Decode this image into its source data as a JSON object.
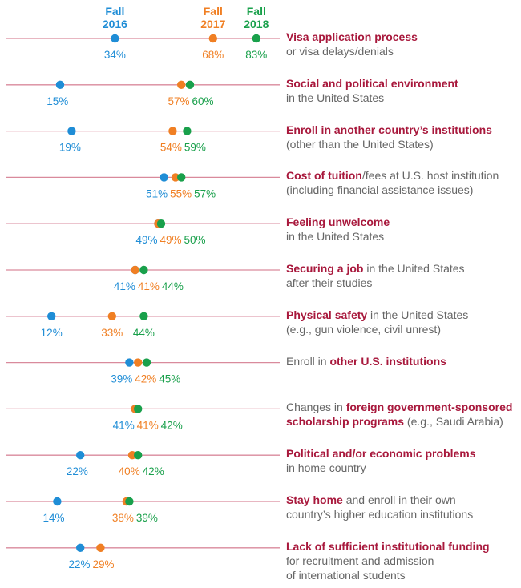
{
  "colors": {
    "fall2016": "#1f8dd6",
    "fall2017": "#f07f23",
    "fall2018": "#19a04b",
    "line": "#d98a9c",
    "emphasis": "#a8183c",
    "text": "#666666"
  },
  "chart_data": {
    "type": "dot",
    "x_range": [
      0,
      100
    ],
    "series": [
      {
        "name_line1": "Fall",
        "name_line2": "2016",
        "key": "fall2016",
        "values": [
          34,
          15,
          19,
          51,
          49,
          41,
          12,
          39,
          41,
          22,
          14,
          22
        ]
      },
      {
        "name_line1": "Fall",
        "name_line2": "2017",
        "key": "fall2017",
        "values": [
          68,
          57,
          54,
          55,
          49,
          41,
          33,
          42,
          41,
          40,
          38,
          29
        ]
      },
      {
        "name_line1": "Fall",
        "name_line2": "2018",
        "key": "fall2018",
        "values": [
          83,
          60,
          59,
          57,
          50,
          44,
          44,
          45,
          42,
          42,
          39,
          null
        ]
      }
    ],
    "rows": [
      {
        "segments": [
          {
            "t": "Visa application process",
            "b": true
          }
        ],
        "line2": "or visa delays/denials",
        "line3": ""
      },
      {
        "segments": [
          {
            "t": "Social and political environment",
            "b": true
          }
        ],
        "line2": "in the United States",
        "line3": ""
      },
      {
        "segments": [
          {
            "t": "Enroll in another country’s institutions",
            "b": true
          }
        ],
        "line2": "(other than the United States)",
        "line3": ""
      },
      {
        "segments": [
          {
            "t": "Cost of tuition",
            "b": true
          },
          {
            "t": "/fees at U.S. host institution",
            "b": false
          }
        ],
        "line2": "(including financial assistance issues)",
        "line3": ""
      },
      {
        "segments": [
          {
            "t": "Feeling unwelcome",
            "b": true
          }
        ],
        "line2": "in the United States",
        "line3": ""
      },
      {
        "segments": [
          {
            "t": "Securing a job",
            "b": true
          },
          {
            "t": " in the United States",
            "b": false
          }
        ],
        "line2": "after their studies",
        "line3": ""
      },
      {
        "segments": [
          {
            "t": "Physical safety",
            "b": true
          },
          {
            "t": " in the United States",
            "b": false
          }
        ],
        "line2": "(e.g., gun violence, civil unrest)",
        "line3": ""
      },
      {
        "segments": [
          {
            "t": "Enroll in ",
            "b": false
          },
          {
            "t": "other U.S. institutions",
            "b": true
          }
        ],
        "line2": "",
        "line3": ""
      },
      {
        "segments": [
          {
            "t": "Changes in ",
            "b": false
          },
          {
            "t": "foreign government-sponsored",
            "b": true
          }
        ],
        "line2_segments": [
          {
            "t": "scholarship programs",
            "b": true
          },
          {
            "t": " (e.g., Saudi Arabia)",
            "b": false
          }
        ],
        "line2": "",
        "line3": ""
      },
      {
        "segments": [
          {
            "t": "Political and/or economic problems",
            "b": true
          }
        ],
        "line2": "in home country",
        "line3": ""
      },
      {
        "segments": [
          {
            "t": "Stay home",
            "b": true
          },
          {
            "t": " and enroll in their own",
            "b": false
          }
        ],
        "line2": "country’s higher education institutions",
        "line3": ""
      },
      {
        "segments": [
          {
            "t": "Lack of sufficient institutional funding",
            "b": true
          }
        ],
        "line2": "for recruitment and admission",
        "line3": "of international students"
      }
    ]
  }
}
